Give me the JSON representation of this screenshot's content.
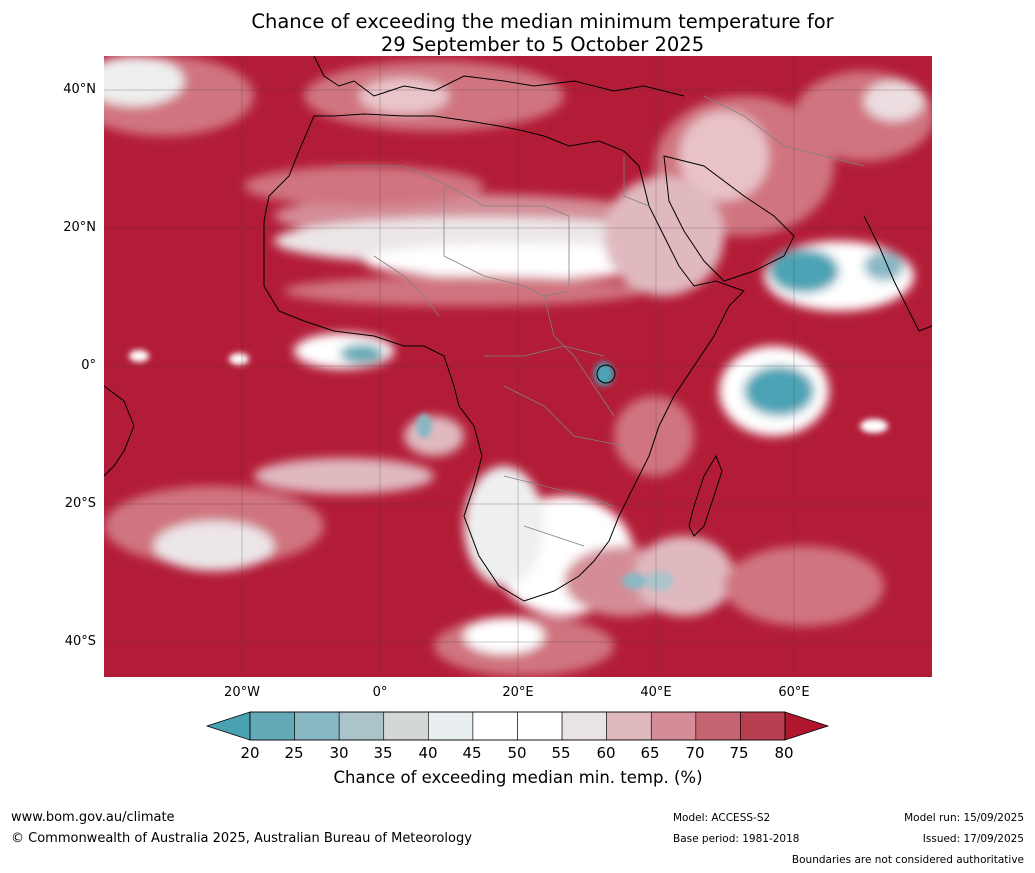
{
  "title": {
    "line1": "Chance of exceeding the median minimum temperature for",
    "line2": "29 September to 5 October 2025"
  },
  "map": {
    "lat_labels": [
      "40°N",
      "20°N",
      "0°",
      "20°S",
      "40°S"
    ],
    "lon_labels": [
      "20°W",
      "0°",
      "20°E",
      "40°E",
      "60°E"
    ],
    "colors": {
      "high": "#b31c37",
      "mid_high": "#d07580",
      "near": "#f0f0f0",
      "low": "#4ca3b5",
      "coast": "#000000",
      "border": "#808080"
    }
  },
  "colorbar": {
    "label": "Chance of exceeding median min. temp. (%)",
    "ticks": [
      "20",
      "25",
      "30",
      "35",
      "40",
      "45",
      "50",
      "55",
      "60",
      "65",
      "70",
      "75",
      "80"
    ],
    "under_color": "#4aa2b1",
    "over_color": "#b1162f",
    "colors": [
      "#64a9b6",
      "#88b8c4",
      "#aac4ca",
      "#d3d7d7",
      "#e9eef0",
      "#ffffff",
      "#ffffff",
      "#e9e3e6",
      "#e0b9bf",
      "#d48d97",
      "#c66472",
      "#b73f50"
    ]
  },
  "footer": {
    "website": "www.bom.gov.au/climate",
    "copyright": "© Commonwealth of Australia 2025, Australian Bureau of Meteorology",
    "model": "Model: ACCESS-S2",
    "base_period": "Base period: 1981-2018",
    "model_run": "Model run: 15/09/2025",
    "issued": "Issued: 17/09/2025",
    "disclaimer": "Boundaries are not considered authoritative"
  }
}
